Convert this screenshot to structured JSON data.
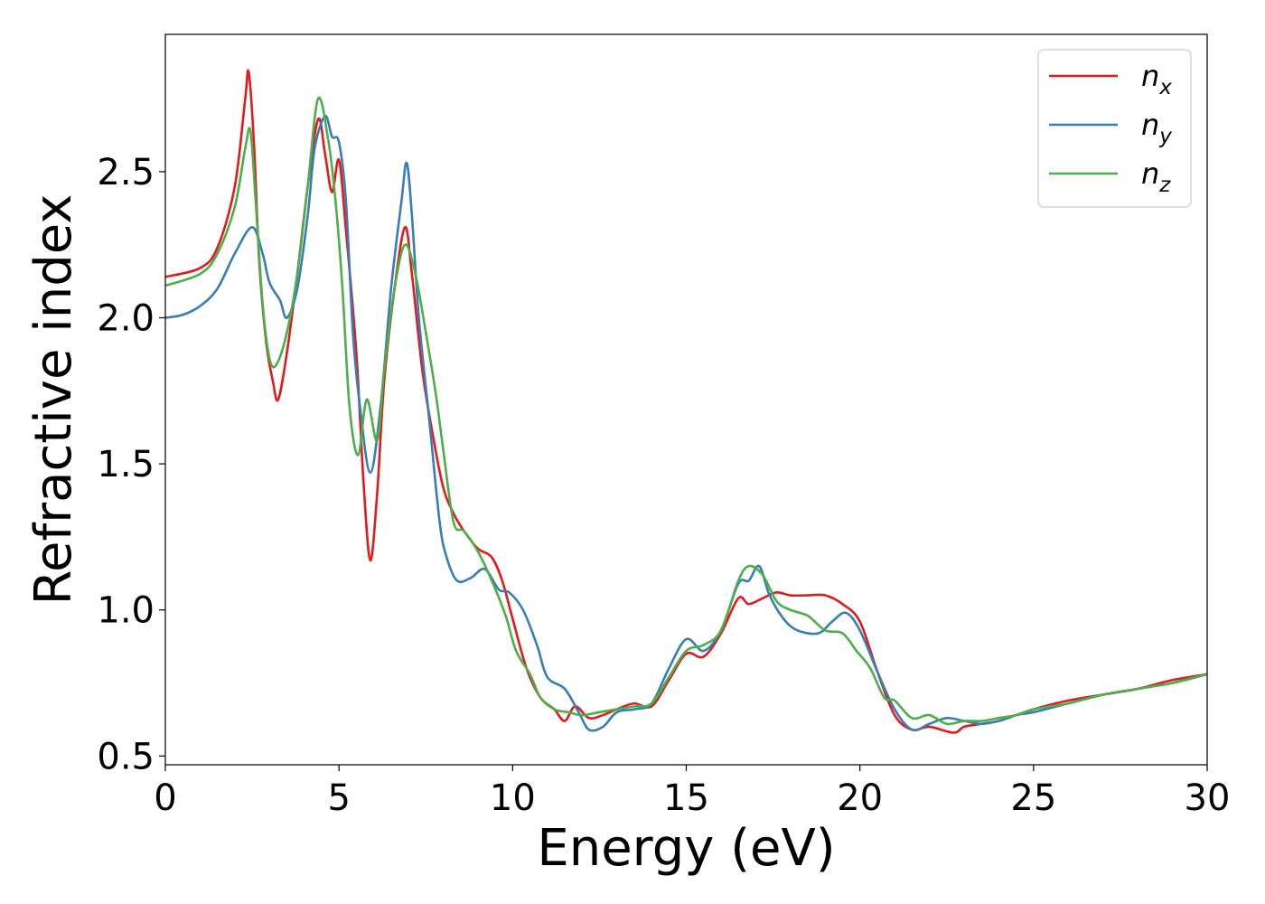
{
  "chart_data": {
    "type": "line",
    "xlabel": "Energy (eV)",
    "ylabel": "Refractive index",
    "xlim": [
      0,
      30
    ],
    "ylim": [
      0.47,
      2.97
    ],
    "xticks": [
      0,
      5,
      10,
      15,
      20,
      25,
      30
    ],
    "yticks": [
      0.5,
      1.0,
      1.5,
      2.0,
      2.5
    ],
    "xtick_labels": [
      "0",
      "5",
      "10",
      "15",
      "20",
      "25",
      "30"
    ],
    "ytick_labels": [
      "0.5",
      "1.0",
      "1.5",
      "2.0",
      "2.5"
    ],
    "grid": false,
    "legend_position": "top-right",
    "series": [
      {
        "name": "n",
        "subscript": "x",
        "color": "#e41a1c",
        "points": [
          [
            0,
            2.14
          ],
          [
            1,
            2.17
          ],
          [
            1.5,
            2.24
          ],
          [
            2,
            2.45
          ],
          [
            2.3,
            2.75
          ],
          [
            2.4,
            2.84
          ],
          [
            2.55,
            2.6
          ],
          [
            2.7,
            2.2
          ],
          [
            2.9,
            1.92
          ],
          [
            3.1,
            1.78
          ],
          [
            3.25,
            1.72
          ],
          [
            3.5,
            1.88
          ],
          [
            3.8,
            2.15
          ],
          [
            4.1,
            2.45
          ],
          [
            4.4,
            2.68
          ],
          [
            4.6,
            2.56
          ],
          [
            4.8,
            2.43
          ],
          [
            5.0,
            2.54
          ],
          [
            5.2,
            2.3
          ],
          [
            5.5,
            1.88
          ],
          [
            5.7,
            1.45
          ],
          [
            5.9,
            1.17
          ],
          [
            6.1,
            1.4
          ],
          [
            6.3,
            1.78
          ],
          [
            6.6,
            2.1
          ],
          [
            6.9,
            2.31
          ],
          [
            7.1,
            2.15
          ],
          [
            7.4,
            1.82
          ],
          [
            7.7,
            1.6
          ],
          [
            8.0,
            1.42
          ],
          [
            8.3,
            1.33
          ],
          [
            8.6,
            1.27
          ],
          [
            9.0,
            1.21
          ],
          [
            9.4,
            1.18
          ],
          [
            9.7,
            1.1
          ],
          [
            10.0,
            0.97
          ],
          [
            10.4,
            0.8
          ],
          [
            10.8,
            0.7
          ],
          [
            11.2,
            0.66
          ],
          [
            11.5,
            0.62
          ],
          [
            11.8,
            0.67
          ],
          [
            12.2,
            0.63
          ],
          [
            12.6,
            0.64
          ],
          [
            13.0,
            0.66
          ],
          [
            13.5,
            0.68
          ],
          [
            14.0,
            0.67
          ],
          [
            14.5,
            0.76
          ],
          [
            15.0,
            0.85
          ],
          [
            15.5,
            0.84
          ],
          [
            16.0,
            0.92
          ],
          [
            16.5,
            1.04
          ],
          [
            16.8,
            1.02
          ],
          [
            17.2,
            1.04
          ],
          [
            17.6,
            1.06
          ],
          [
            18.0,
            1.05
          ],
          [
            18.5,
            1.05
          ],
          [
            19.0,
            1.05
          ],
          [
            19.5,
            1.02
          ],
          [
            20.0,
            0.96
          ],
          [
            20.5,
            0.79
          ],
          [
            21.0,
            0.64
          ],
          [
            21.5,
            0.59
          ],
          [
            22.0,
            0.6
          ],
          [
            22.7,
            0.58
          ],
          [
            23.0,
            0.6
          ],
          [
            23.5,
            0.61
          ],
          [
            24.0,
            0.62
          ],
          [
            24.5,
            0.64
          ],
          [
            25.0,
            0.66
          ],
          [
            26.0,
            0.69
          ],
          [
            27.0,
            0.71
          ],
          [
            28.0,
            0.73
          ],
          [
            29.0,
            0.76
          ],
          [
            30.0,
            0.78
          ]
        ]
      },
      {
        "name": "n",
        "subscript": "y",
        "color": "#377eb8",
        "points": [
          [
            0,
            2.0
          ],
          [
            0.5,
            2.01
          ],
          [
            1.0,
            2.04
          ],
          [
            1.5,
            2.1
          ],
          [
            2.0,
            2.22
          ],
          [
            2.5,
            2.31
          ],
          [
            2.8,
            2.22
          ],
          [
            3.0,
            2.12
          ],
          [
            3.3,
            2.06
          ],
          [
            3.5,
            2.0
          ],
          [
            3.8,
            2.1
          ],
          [
            4.1,
            2.35
          ],
          [
            4.3,
            2.58
          ],
          [
            4.6,
            2.69
          ],
          [
            4.8,
            2.62
          ],
          [
            5.0,
            2.6
          ],
          [
            5.2,
            2.4
          ],
          [
            5.4,
            1.95
          ],
          [
            5.6,
            1.7
          ],
          [
            5.9,
            1.47
          ],
          [
            6.2,
            1.7
          ],
          [
            6.5,
            2.1
          ],
          [
            6.8,
            2.4
          ],
          [
            6.95,
            2.53
          ],
          [
            7.1,
            2.35
          ],
          [
            7.3,
            2.0
          ],
          [
            7.6,
            1.65
          ],
          [
            7.9,
            1.3
          ],
          [
            8.1,
            1.18
          ],
          [
            8.4,
            1.1
          ],
          [
            8.8,
            1.11
          ],
          [
            9.2,
            1.14
          ],
          [
            9.6,
            1.07
          ],
          [
            9.9,
            1.06
          ],
          [
            10.3,
            1.0
          ],
          [
            10.7,
            0.88
          ],
          [
            11.0,
            0.77
          ],
          [
            11.5,
            0.73
          ],
          [
            11.9,
            0.65
          ],
          [
            12.2,
            0.59
          ],
          [
            12.6,
            0.6
          ],
          [
            13.0,
            0.65
          ],
          [
            13.5,
            0.66
          ],
          [
            14.0,
            0.68
          ],
          [
            14.5,
            0.8
          ],
          [
            15.0,
            0.9
          ],
          [
            15.5,
            0.86
          ],
          [
            16.0,
            0.93
          ],
          [
            16.5,
            1.09
          ],
          [
            16.8,
            1.1
          ],
          [
            17.1,
            1.15
          ],
          [
            17.4,
            1.05
          ],
          [
            17.8,
            0.97
          ],
          [
            18.2,
            0.93
          ],
          [
            18.8,
            0.92
          ],
          [
            19.2,
            0.96
          ],
          [
            19.6,
            0.99
          ],
          [
            20.0,
            0.93
          ],
          [
            20.5,
            0.79
          ],
          [
            21.0,
            0.66
          ],
          [
            21.5,
            0.59
          ],
          [
            22.0,
            0.61
          ],
          [
            22.5,
            0.63
          ],
          [
            23.0,
            0.62
          ],
          [
            23.5,
            0.61
          ],
          [
            24.0,
            0.62
          ],
          [
            24.5,
            0.64
          ],
          [
            25.0,
            0.65
          ],
          [
            26.0,
            0.68
          ],
          [
            27.0,
            0.71
          ],
          [
            28.0,
            0.73
          ],
          [
            29.0,
            0.75
          ],
          [
            30.0,
            0.78
          ]
        ]
      },
      {
        "name": "n",
        "subscript": "z",
        "color": "#4daf4a",
        "points": [
          [
            0,
            2.11
          ],
          [
            1.0,
            2.15
          ],
          [
            1.5,
            2.22
          ],
          [
            2.0,
            2.38
          ],
          [
            2.3,
            2.58
          ],
          [
            2.45,
            2.64
          ],
          [
            2.6,
            2.4
          ],
          [
            2.8,
            2.05
          ],
          [
            3.0,
            1.86
          ],
          [
            3.2,
            1.84
          ],
          [
            3.5,
            1.95
          ],
          [
            3.8,
            2.15
          ],
          [
            4.1,
            2.45
          ],
          [
            4.4,
            2.75
          ],
          [
            4.7,
            2.6
          ],
          [
            4.9,
            2.4
          ],
          [
            5.1,
            2.1
          ],
          [
            5.3,
            1.7
          ],
          [
            5.55,
            1.53
          ],
          [
            5.8,
            1.72
          ],
          [
            6.1,
            1.58
          ],
          [
            6.3,
            1.82
          ],
          [
            6.6,
            2.1
          ],
          [
            6.9,
            2.25
          ],
          [
            7.2,
            2.15
          ],
          [
            7.5,
            1.95
          ],
          [
            7.8,
            1.73
          ],
          [
            8.0,
            1.55
          ],
          [
            8.3,
            1.3
          ],
          [
            8.6,
            1.27
          ],
          [
            9.0,
            1.2
          ],
          [
            9.4,
            1.1
          ],
          [
            9.8,
            0.98
          ],
          [
            10.1,
            0.86
          ],
          [
            10.5,
            0.78
          ],
          [
            10.8,
            0.7
          ],
          [
            11.2,
            0.66
          ],
          [
            11.6,
            0.65
          ],
          [
            12.0,
            0.64
          ],
          [
            12.5,
            0.65
          ],
          [
            13.0,
            0.66
          ],
          [
            13.5,
            0.67
          ],
          [
            14.0,
            0.68
          ],
          [
            14.5,
            0.77
          ],
          [
            15.0,
            0.86
          ],
          [
            15.5,
            0.88
          ],
          [
            16.0,
            0.93
          ],
          [
            16.5,
            1.1
          ],
          [
            16.8,
            1.15
          ],
          [
            17.2,
            1.12
          ],
          [
            17.6,
            1.03
          ],
          [
            18.0,
            1.0
          ],
          [
            18.5,
            0.98
          ],
          [
            19.0,
            0.93
          ],
          [
            19.5,
            0.92
          ],
          [
            19.9,
            0.86
          ],
          [
            20.3,
            0.8
          ],
          [
            20.7,
            0.7
          ],
          [
            21.0,
            0.69
          ],
          [
            21.5,
            0.63
          ],
          [
            22.0,
            0.64
          ],
          [
            22.5,
            0.61
          ],
          [
            23.0,
            0.62
          ],
          [
            23.5,
            0.62
          ],
          [
            24.0,
            0.63
          ],
          [
            24.5,
            0.64
          ],
          [
            25.0,
            0.66
          ],
          [
            26.0,
            0.68
          ],
          [
            27.0,
            0.71
          ],
          [
            28.0,
            0.73
          ],
          [
            29.0,
            0.75
          ],
          [
            30.0,
            0.78
          ]
        ]
      }
    ]
  }
}
